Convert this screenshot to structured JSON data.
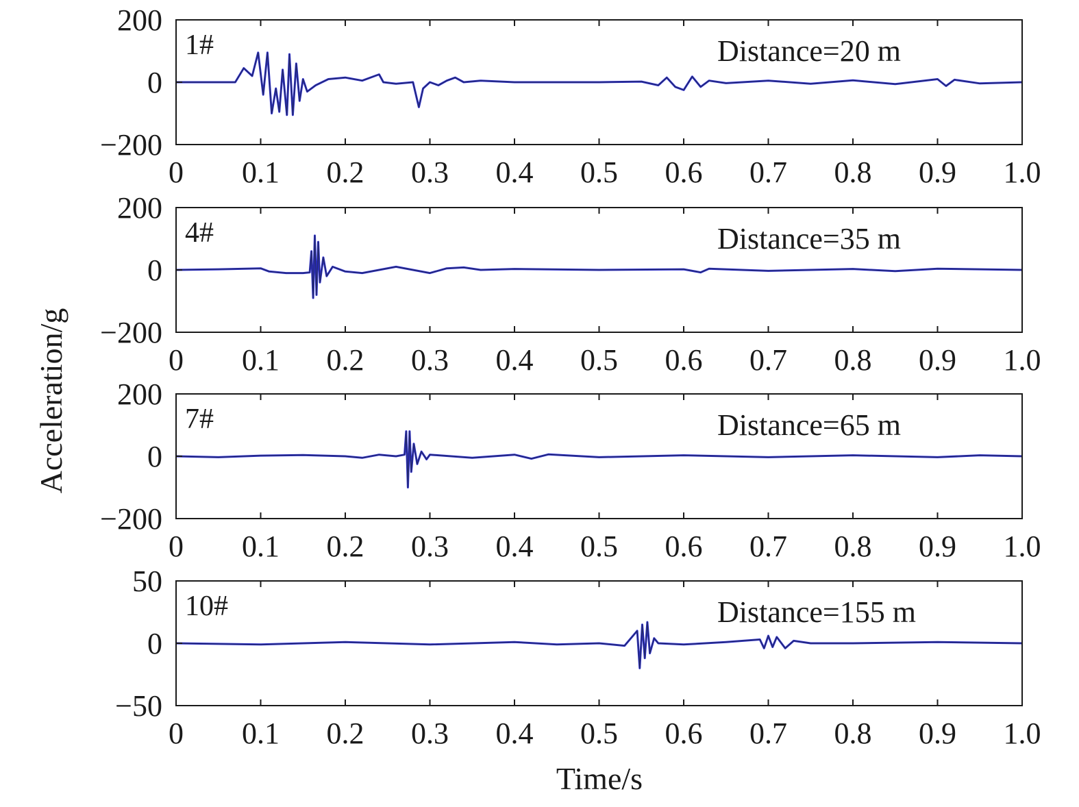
{
  "colors": {
    "frame": "#1a1a1a",
    "signal_dark": "#222a44",
    "signal_blue": "#2d2ed6",
    "signal_teal": "#1c7fb8"
  },
  "chart_data": {
    "type": "line",
    "xlabel": "Time/s",
    "ylabel": "Acceleration/g",
    "shared_x_ticks": [
      "0",
      "0.1",
      "0.2",
      "0.3",
      "0.4",
      "0.5",
      "0.6",
      "0.7",
      "0.8",
      "0.9",
      "1.0"
    ],
    "xlim": [
      0,
      1.0
    ],
    "grid": false,
    "panels": [
      {
        "station": "1#",
        "annotation": "Distance=20 m",
        "ylim": [
          -200,
          200
        ],
        "yticks": [
          "200",
          "0",
          "−200"
        ],
        "series": [
          {
            "points": [
              [
                0,
                0
              ],
              [
                0.07,
                0
              ],
              [
                0.08,
                45
              ],
              [
                0.09,
                20
              ],
              [
                0.097,
                95
              ],
              [
                0.103,
                -40
              ],
              [
                0.108,
                95
              ],
              [
                0.113,
                -100
              ],
              [
                0.118,
                -20
              ],
              [
                0.122,
                -95
              ],
              [
                0.126,
                40
              ],
              [
                0.131,
                -105
              ],
              [
                0.134,
                90
              ],
              [
                0.138,
                -105
              ],
              [
                0.142,
                60
              ],
              [
                0.146,
                -60
              ],
              [
                0.15,
                10
              ],
              [
                0.155,
                -30
              ],
              [
                0.165,
                -10
              ],
              [
                0.18,
                10
              ],
              [
                0.2,
                15
              ],
              [
                0.22,
                5
              ],
              [
                0.235,
                20
              ],
              [
                0.24,
                25
              ],
              [
                0.245,
                0
              ],
              [
                0.26,
                -5
              ],
              [
                0.28,
                0
              ],
              [
                0.287,
                -80
              ],
              [
                0.292,
                -20
              ],
              [
                0.3,
                0
              ],
              [
                0.31,
                -10
              ],
              [
                0.32,
                5
              ],
              [
                0.33,
                15
              ],
              [
                0.34,
                0
              ],
              [
                0.36,
                5
              ],
              [
                0.4,
                0
              ],
              [
                0.5,
                0
              ],
              [
                0.55,
                2
              ],
              [
                0.57,
                -10
              ],
              [
                0.58,
                15
              ],
              [
                0.59,
                -15
              ],
              [
                0.6,
                -25
              ],
              [
                0.61,
                18
              ],
              [
                0.62,
                -15
              ],
              [
                0.63,
                5
              ],
              [
                0.65,
                -3
              ],
              [
                0.7,
                5
              ],
              [
                0.75,
                -5
              ],
              [
                0.8,
                6
              ],
              [
                0.85,
                -6
              ],
              [
                0.9,
                10
              ],
              [
                0.91,
                -12
              ],
              [
                0.92,
                8
              ],
              [
                0.95,
                -4
              ],
              [
                1.0,
                0
              ]
            ]
          }
        ]
      },
      {
        "station": "4#",
        "annotation": "Distance=35 m",
        "ylim": [
          -200,
          200
        ],
        "yticks": [
          "200",
          "0",
          "−200"
        ],
        "series": [
          {
            "points": [
              [
                0,
                0
              ],
              [
                0.05,
                2
              ],
              [
                0.1,
                5
              ],
              [
                0.11,
                -5
              ],
              [
                0.13,
                -10
              ],
              [
                0.15,
                -10
              ],
              [
                0.158,
                -8
              ],
              [
                0.16,
                60
              ],
              [
                0.162,
                -90
              ],
              [
                0.164,
                110
              ],
              [
                0.166,
                -80
              ],
              [
                0.168,
                90
              ],
              [
                0.17,
                -40
              ],
              [
                0.174,
                40
              ],
              [
                0.178,
                -20
              ],
              [
                0.185,
                10
              ],
              [
                0.2,
                -5
              ],
              [
                0.22,
                -10
              ],
              [
                0.24,
                0
              ],
              [
                0.26,
                10
              ],
              [
                0.28,
                0
              ],
              [
                0.3,
                -10
              ],
              [
                0.32,
                5
              ],
              [
                0.34,
                8
              ],
              [
                0.36,
                0
              ],
              [
                0.4,
                3
              ],
              [
                0.5,
                0
              ],
              [
                0.6,
                2
              ],
              [
                0.62,
                -8
              ],
              [
                0.63,
                4
              ],
              [
                0.7,
                -3
              ],
              [
                0.8,
                3
              ],
              [
                0.85,
                -4
              ],
              [
                0.9,
                4
              ],
              [
                1.0,
                0
              ]
            ]
          }
        ]
      },
      {
        "station": "7#",
        "annotation": "Distance=65 m",
        "ylim": [
          -200,
          200
        ],
        "yticks": [
          "200",
          "0",
          "−200"
        ],
        "series": [
          {
            "points": [
              [
                0,
                0
              ],
              [
                0.05,
                -3
              ],
              [
                0.1,
                2
              ],
              [
                0.15,
                4
              ],
              [
                0.2,
                0
              ],
              [
                0.22,
                -5
              ],
              [
                0.24,
                5
              ],
              [
                0.26,
                0
              ],
              [
                0.27,
                5
              ],
              [
                0.272,
                80
              ],
              [
                0.274,
                -100
              ],
              [
                0.276,
                80
              ],
              [
                0.278,
                -50
              ],
              [
                0.281,
                40
              ],
              [
                0.285,
                -25
              ],
              [
                0.29,
                15
              ],
              [
                0.296,
                -10
              ],
              [
                0.3,
                5
              ],
              [
                0.35,
                -5
              ],
              [
                0.4,
                5
              ],
              [
                0.42,
                -8
              ],
              [
                0.44,
                6
              ],
              [
                0.5,
                -3
              ],
              [
                0.6,
                3
              ],
              [
                0.7,
                -3
              ],
              [
                0.8,
                3
              ],
              [
                0.9,
                -3
              ],
              [
                0.95,
                3
              ],
              [
                1.0,
                0
              ]
            ]
          }
        ]
      },
      {
        "station": "10#",
        "annotation": "Distance=155 m",
        "ylim": [
          -50,
          50
        ],
        "yticks": [
          "50",
          "0",
          "−50"
        ],
        "series": [
          {
            "points": [
              [
                0,
                0
              ],
              [
                0.1,
                -1
              ],
              [
                0.2,
                1
              ],
              [
                0.3,
                -1
              ],
              [
                0.4,
                1
              ],
              [
                0.45,
                -1
              ],
              [
                0.5,
                0
              ],
              [
                0.53,
                -2
              ],
              [
                0.545,
                10
              ],
              [
                0.548,
                -20
              ],
              [
                0.551,
                15
              ],
              [
                0.554,
                -12
              ],
              [
                0.557,
                17
              ],
              [
                0.56,
                -8
              ],
              [
                0.565,
                4
              ],
              [
                0.57,
                0
              ],
              [
                0.6,
                -1
              ],
              [
                0.65,
                1
              ],
              [
                0.69,
                3
              ],
              [
                0.695,
                -4
              ],
              [
                0.7,
                6
              ],
              [
                0.705,
                -3
              ],
              [
                0.71,
                5
              ],
              [
                0.72,
                -4
              ],
              [
                0.73,
                2
              ],
              [
                0.75,
                0
              ],
              [
                0.8,
                0
              ],
              [
                0.9,
                1
              ],
              [
                1.0,
                0
              ]
            ]
          }
        ]
      }
    ]
  }
}
